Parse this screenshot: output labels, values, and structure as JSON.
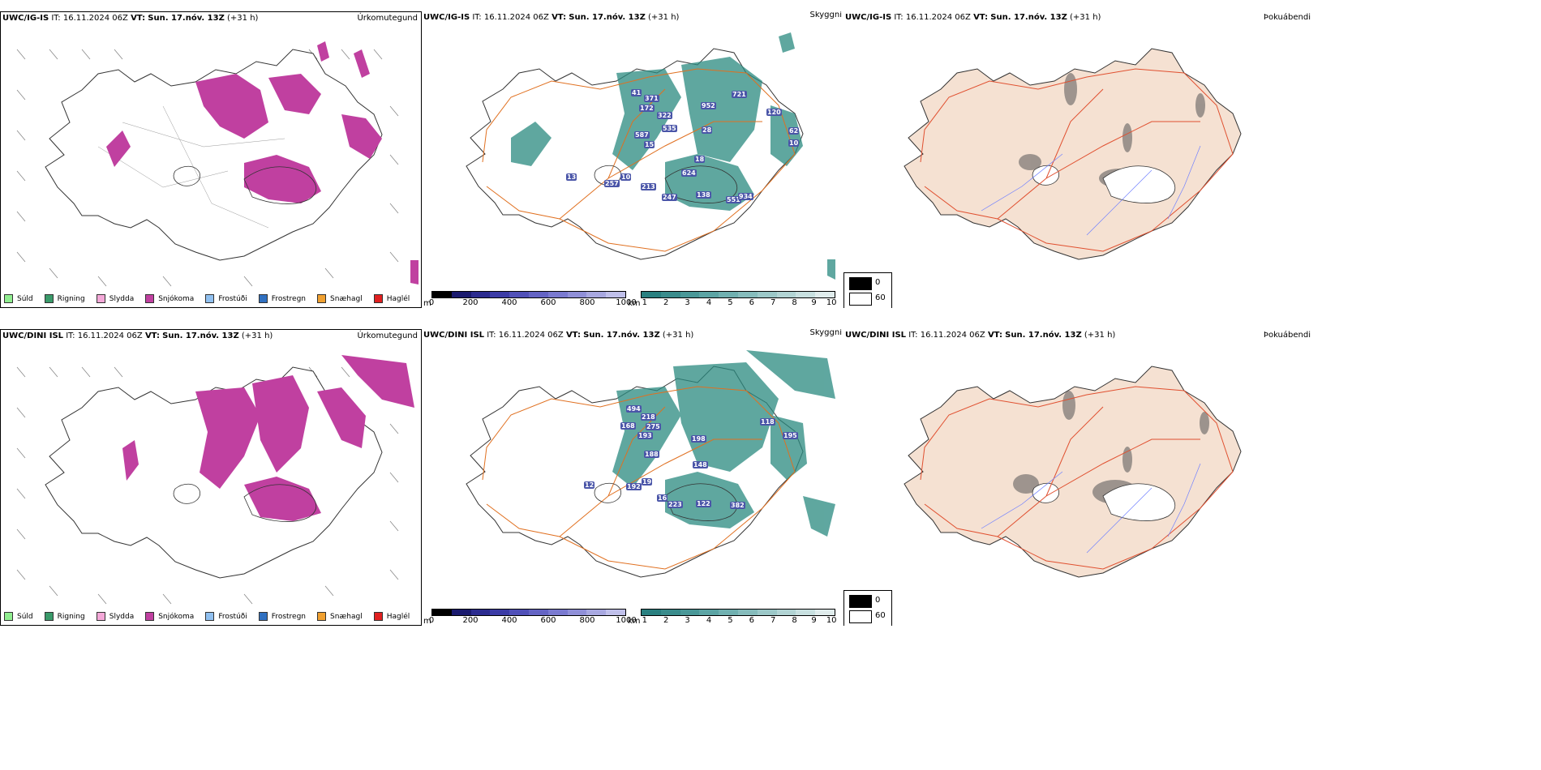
{
  "rows": [
    {
      "model": "UWC/IG-IS",
      "it_label": "IT:",
      "it_value": "16.11.2024 06Z",
      "vt_label": "VT:",
      "vt_value": "Sun. 17.nóv. 13Z",
      "lead": "(+31 h)",
      "vis_labels": [
        "41",
        "371",
        "172",
        "322",
        "535",
        "587",
        "952",
        "28",
        "721",
        "120",
        "62",
        "10",
        "15",
        "624",
        "18",
        "257",
        "10",
        "213",
        "247",
        "138",
        "551",
        "934",
        "13"
      ]
    },
    {
      "model": "UWC/DINI ISL",
      "it_label": "IT:",
      "it_value": "16.11.2024 06Z",
      "vt_label": "VT:",
      "vt_value": "Sun. 17.nóv. 13Z",
      "lead": "(+31 h)",
      "vis_labels": [
        "494",
        "218",
        "168",
        "275",
        "193",
        "188",
        "198",
        "118",
        "195",
        "148",
        "192",
        "19",
        "12",
        "223",
        "122",
        "382",
        "16"
      ]
    }
  ],
  "fields": {
    "precip_type": "Úrkomutegund",
    "visibility": "Skyggni",
    "fog": "Þokuábendi"
  },
  "precip_legend": [
    {
      "label": "Súld",
      "color": "#90ee90"
    },
    {
      "label": "Rigning",
      "color": "#3a9a6a"
    },
    {
      "label": "Slydda",
      "color": "#f4a8d8"
    },
    {
      "label": "Snjókoma",
      "color": "#c040a0"
    },
    {
      "label": "Frostúði",
      "color": "#90c0f0"
    },
    {
      "label": "Frostregn",
      "color": "#3070c0"
    },
    {
      "label": "Snæhagl",
      "color": "#f0a030"
    },
    {
      "label": "Haglél",
      "color": "#e02020"
    }
  ],
  "vis_m_colorbar": {
    "unit": "m",
    "ticks": [
      "0",
      "200",
      "400",
      "600",
      "800",
      "1000"
    ],
    "colors": [
      "#000000",
      "#1a1a6e",
      "#2b2b8f",
      "#3c3ca6",
      "#5050b8",
      "#6464c4",
      "#7a7ad0",
      "#9090d8",
      "#a8a8e0",
      "#c0c0ea"
    ]
  },
  "vis_km_colorbar": {
    "unit": "km",
    "ticks": [
      "1",
      "2",
      "3",
      "4",
      "5",
      "6",
      "7",
      "8",
      "9",
      "10"
    ],
    "colors": [
      "#2a8080",
      "#3a8c8c",
      "#4a9898",
      "#5ca4a4",
      "#70b0b0",
      "#86bcbc",
      "#9cc8c8",
      "#b2d4d4",
      "#c8e0e0",
      "#e0ecec"
    ]
  },
  "cloud_legend": {
    "low": "0",
    "high": "60"
  },
  "colors": {
    "snow": "#c040a0",
    "teal": "#2a8a80",
    "road": "#e07020",
    "land_fog": "#f5e1d2",
    "river": "#7080ff"
  }
}
